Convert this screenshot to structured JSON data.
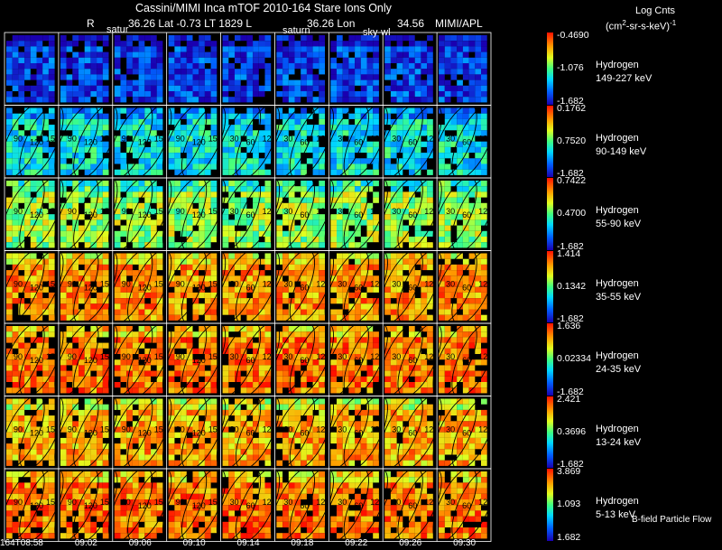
{
  "header": {
    "title": "Cassini/MIMI Inca mTOF  2010-164   Stare    Ions Only",
    "r_label": "R",
    "lat_lt": "36.26 Lat -0.73 LT 1829 L",
    "lon": "36.26 Lon",
    "radius": "34.56",
    "institution": "MIMI/APL",
    "colorbar_title": "Log Cnts",
    "colorbar_units_prefix": "(cm",
    "colorbar_units_exp": "2",
    "colorbar_units_suffix": "-sr-s-keV)",
    "colorbar_units_exp2": "-1"
  },
  "body_labels": [
    "satur",
    "saturn",
    "sky-wl"
  ],
  "footnote": "B-field Particle Flow",
  "chart_data": {
    "type": "heatmap",
    "title": "Cassini/MIMI Inca mTOF  2010-164   Stare    Ions Only",
    "columns": 9,
    "time_ticks": [
      "164T08:58",
      "09:02",
      "09:06",
      "09:10",
      "09:14",
      "09:18",
      "09:22",
      "09:26",
      "09:30"
    ],
    "contour_labels": [
      "90",
      "120",
      "150",
      "30",
      "60"
    ],
    "panels": [
      {
        "species": "Hydrogen",
        "energy": "149-227 keV",
        "cmax": "-0.4690",
        "cmid": "-1.076",
        "cmin": "-1.682",
        "level": 0.12
      },
      {
        "species": "Hydrogen",
        "energy": "90-149 keV",
        "cmax": "0.1762",
        "cmid": "0.7520",
        "cmin": "-1.682",
        "level": 0.38
      },
      {
        "species": "Hydrogen",
        "energy": "55-90 keV",
        "cmax": "0.7422",
        "cmid": "0.4700",
        "cmin": "-1.682",
        "level": 0.58
      },
      {
        "species": "Hydrogen",
        "energy": "35-55 keV",
        "cmax": "1.414",
        "cmid": "0.1342",
        "cmin": "-1.682",
        "level": 0.82
      },
      {
        "species": "Hydrogen",
        "energy": "24-35 keV",
        "cmax": "1.636",
        "cmid": "0.02334",
        "cmin": "-1.682",
        "level": 0.86
      },
      {
        "species": "Hydrogen",
        "energy": "13-24 keV",
        "cmax": "2.421",
        "cmid": "0.3696",
        "cmin": "-1.682",
        "level": 0.78
      },
      {
        "species": "Hydrogen",
        "energy": "5-13 keV",
        "cmax": "3.869",
        "cmid": "1.093",
        "cmin": "1.682",
        "level": 0.86
      }
    ]
  },
  "colors": {
    "background": "#000000",
    "border": "#ffffff",
    "contour": "#000000"
  }
}
